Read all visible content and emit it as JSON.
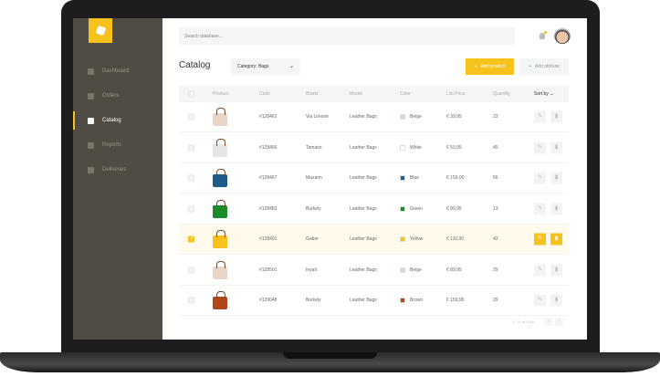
{
  "sidebar": {
    "items": [
      {
        "label": "Dashboard",
        "icon": "dashboard-icon"
      },
      {
        "label": "Orders",
        "icon": "basket-icon"
      },
      {
        "label": "Catalog",
        "icon": "book-icon",
        "active": true
      },
      {
        "label": "Reports",
        "icon": "report-icon"
      },
      {
        "label": "Deliveries",
        "icon": "box-icon"
      }
    ]
  },
  "header": {
    "search_placeholder": "Search database..."
  },
  "page": {
    "title": "Catalog",
    "category": "Category:  Bags",
    "add_product": "Add product",
    "add_attribute": "Add atribute"
  },
  "table": {
    "headers": {
      "product": "Product",
      "code": "Code",
      "brand": "Brand",
      "model": "Model",
      "color": "Color",
      "price": "List Price",
      "quantity": "Quantity",
      "sort": "Sort by"
    },
    "rows": [
      {
        "code": "#128462",
        "brand": "Via Limone",
        "model": "Leather Bags",
        "color": "Beige",
        "swatch": "#e8d5c8",
        "price": "€ 39,95",
        "qty": "23",
        "selected": false
      },
      {
        "code": "#128466",
        "brand": "Tamaris",
        "model": "Leather Bags",
        "color": "White",
        "swatch": "#ffffff",
        "price": "€ 59,95",
        "qty": "45",
        "selected": false
      },
      {
        "code": "#128467",
        "brand": "Mazarin",
        "model": "Leather Bags",
        "color": "Blue",
        "swatch": "#1f5b8c",
        "price": "€ 159,00",
        "qty": "56",
        "selected": false
      },
      {
        "code": "#128483",
        "brand": "Burkely",
        "model": "Leather Bags",
        "color": "Green",
        "swatch": "#1a8a2a",
        "price": "€ 89,95",
        "qty": "13",
        "selected": false
      },
      {
        "code": "#128491",
        "brand": "Gabor",
        "model": "Leather Bags",
        "color": "Yellow",
        "swatch": "#f8c21c",
        "price": "€ 110,00",
        "qty": "43",
        "selected": true
      },
      {
        "code": "#128501",
        "brand": "Inyati",
        "model": "Leather Bags",
        "color": "Beige",
        "swatch": "#e8d5c8",
        "price": "€ 89,95",
        "qty": "29",
        "selected": false
      },
      {
        "code": "#129048",
        "brand": "Burkely",
        "model": "Leather Bags",
        "color": "Brown",
        "swatch": "#b0461a",
        "price": "€ 159,95",
        "qty": "29",
        "selected": false
      }
    ]
  },
  "pagination": {
    "text": "1 - 11 of 1129"
  },
  "colors": {
    "accent": "#f8c21c",
    "sidebar": "#504b43"
  }
}
